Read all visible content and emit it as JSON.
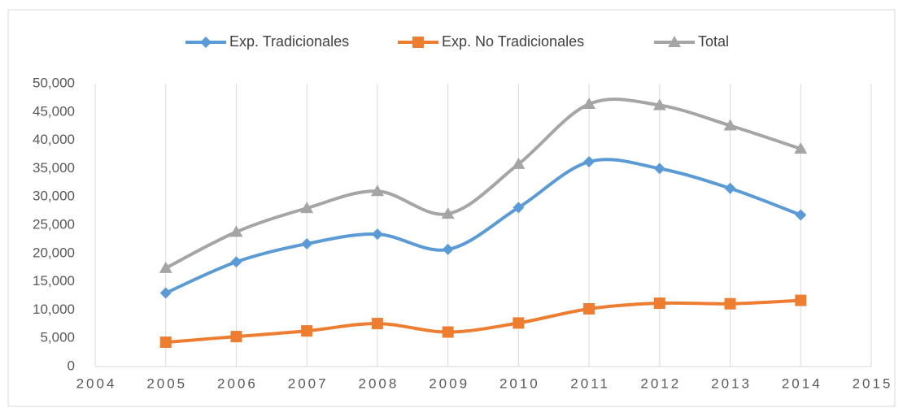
{
  "chart_data": {
    "type": "line",
    "x": [
      2005,
      2006,
      2007,
      2008,
      2009,
      2010,
      2011,
      2012,
      2013,
      2014
    ],
    "series": [
      {
        "name": "Exp. Tradicionales",
        "color": "#5b9bd5",
        "marker": "diamond",
        "values": [
          13000,
          18500,
          21700,
          23400,
          20700,
          28100,
          36200,
          35000,
          31500,
          26800
        ]
      },
      {
        "name": "Exp. No Tradicionales",
        "color": "#ed7d31",
        "marker": "square",
        "values": [
          4300,
          5300,
          6300,
          7600,
          6100,
          7700,
          10200,
          11200,
          11100,
          11700
        ]
      },
      {
        "name": "Total",
        "color": "#a5a5a5",
        "marker": "triangle",
        "values": [
          17400,
          23800,
          28000,
          31000,
          27000,
          35800,
          46400,
          46200,
          42600,
          38500
        ]
      }
    ],
    "xlim": [
      2004,
      2015
    ],
    "xticks": [
      2004,
      2005,
      2006,
      2007,
      2008,
      2009,
      2010,
      2011,
      2012,
      2013,
      2014,
      2015
    ],
    "ylim": [
      0,
      50000
    ],
    "yticks": [
      0,
      {
        "value": 5000,
        "label": "5,000"
      },
      {
        "value": 10000,
        "label": "10,000"
      },
      {
        "value": 15000,
        "label": "15,000"
      },
      {
        "value": 20000,
        "label": "20,000"
      },
      {
        "value": 25000,
        "label": "25,000"
      },
      {
        "value": 30000,
        "label": "30,000"
      },
      {
        "value": 35000,
        "label": "35,000"
      },
      {
        "value": 40000,
        "label": "40,000"
      },
      {
        "value": 45000,
        "label": "45,000"
      },
      {
        "value": 50000,
        "label": "50,000"
      }
    ],
    "grid": "x",
    "smooth": true,
    "legend": "top"
  }
}
